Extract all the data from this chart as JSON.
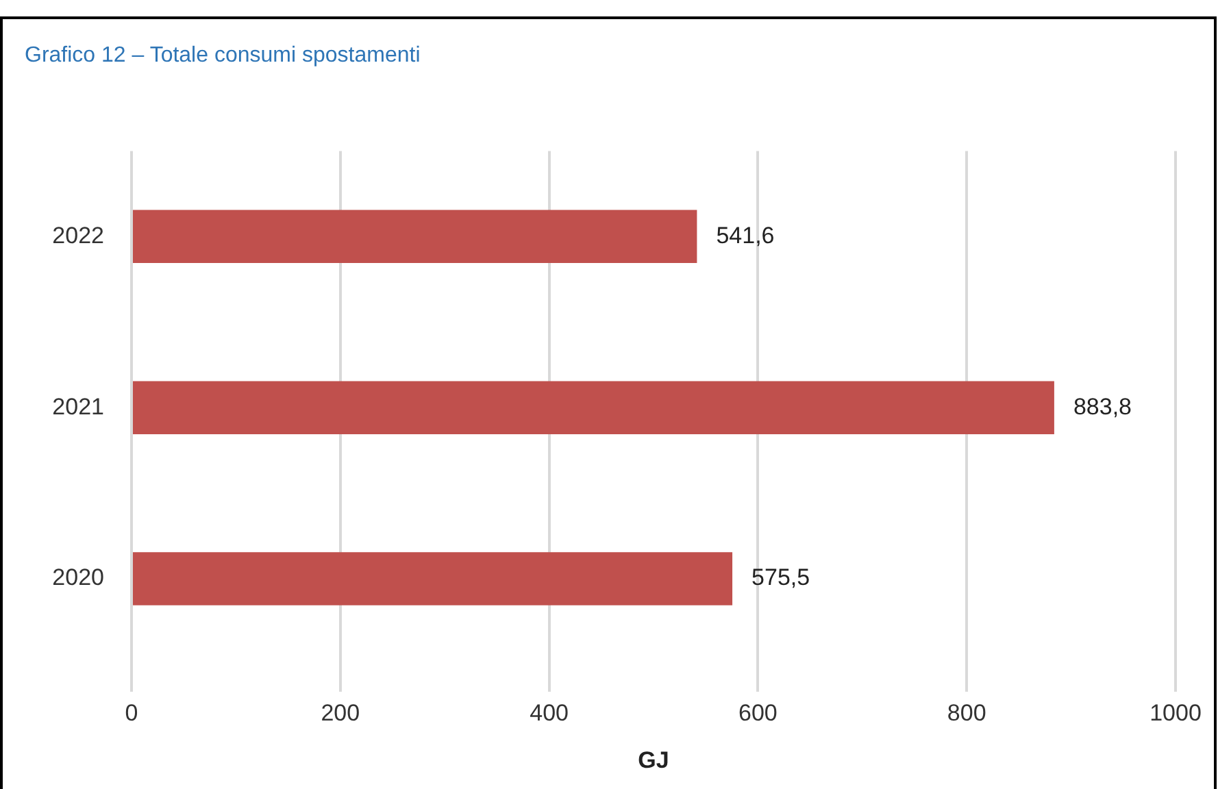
{
  "chart_data": {
    "type": "bar",
    "orientation": "horizontal",
    "title": "Grafico 12 – Totale consumi spostamenti",
    "xlabel": "GJ",
    "categories": [
      "2022",
      "2021",
      "2020"
    ],
    "values": [
      541.6,
      883.8,
      575.5
    ],
    "value_labels": [
      "541,6",
      "883,8",
      "575,5"
    ],
    "color": "#c0504d",
    "xlim": [
      0,
      1000
    ],
    "xticks": [
      0,
      200,
      400,
      600,
      800,
      1000
    ],
    "grid": "x"
  }
}
